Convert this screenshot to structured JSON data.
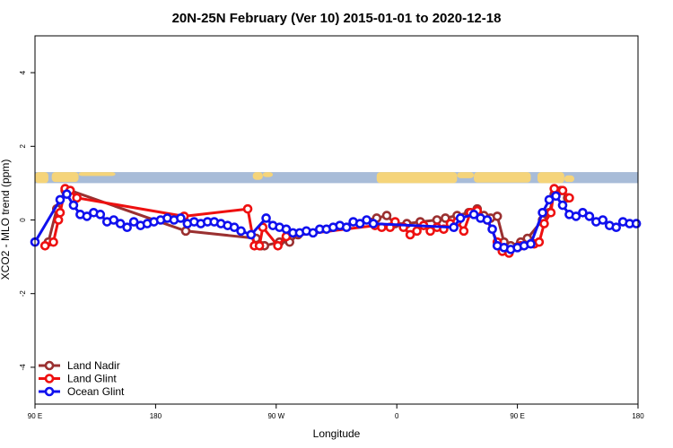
{
  "chart_data": {
    "type": "line",
    "title": "20N-25N February (Ver 10)   2015-01-01 to 2020-12-18",
    "xlabel": "Longitude",
    "ylabel": "XCO2 - MLO trend (ppm)",
    "xlim": [
      0,
      360
    ],
    "ylim": [
      -5,
      5
    ],
    "x_ticks": [
      {
        "value": 0,
        "label": "90 E"
      },
      {
        "value": 72,
        "label": "180"
      },
      {
        "value": 144,
        "label": "90 W"
      },
      {
        "value": 216,
        "label": "0"
      },
      {
        "value": 288,
        "label": "90 E"
      },
      {
        "value": 360,
        "label": "180"
      }
    ],
    "y_ticks": [
      {
        "value": -4,
        "label": "-4"
      },
      {
        "value": -2,
        "label": "-2"
      },
      {
        "value": 0,
        "label": "0"
      },
      {
        "value": 2,
        "label": "2"
      },
      {
        "value": 4,
        "label": "4"
      }
    ],
    "map_strip": {
      "y_range": [
        1.0,
        1.3
      ],
      "ocean_color": "#a8bcd8",
      "land_color": "#f5d47a"
    },
    "legend": {
      "position": "bottom-left"
    },
    "series": [
      {
        "name": "Land Nadir",
        "color": "#9a3030",
        "points": [
          [
            8,
            -0.6
          ],
          [
            13,
            0.3
          ],
          [
            18,
            0.8
          ],
          [
            21,
            0.8
          ],
          [
            90,
            -0.3
          ],
          [
            132,
            -0.5
          ],
          [
            135,
            -0.7
          ],
          [
            137,
            -0.7
          ],
          [
            146,
            -0.6
          ],
          [
            152,
            -0.6
          ],
          [
            157,
            -0.4
          ],
          [
            204,
            0.05
          ],
          [
            210,
            0.12
          ],
          [
            215,
            -0.1
          ],
          [
            222,
            -0.1
          ],
          [
            230,
            -0.05
          ],
          [
            240,
            0.0
          ],
          [
            245,
            0.05
          ],
          [
            252,
            0.12
          ],
          [
            259,
            0.2
          ],
          [
            264,
            0.3
          ],
          [
            268,
            0.12
          ],
          [
            272,
            0.05
          ],
          [
            276,
            0.1
          ],
          [
            280,
            -0.6
          ],
          [
            284,
            -0.7
          ],
          [
            290,
            -0.6
          ],
          [
            294,
            -0.5
          ],
          [
            303,
            0.0
          ],
          [
            307,
            0.2
          ],
          [
            310,
            0.7
          ],
          [
            314,
            0.8
          ],
          [
            318,
            0.6
          ]
        ]
      },
      {
        "name": "Land Glint",
        "color": "#ee1010",
        "points": [
          [
            6,
            -0.7
          ],
          [
            11,
            -0.6
          ],
          [
            14,
            0.0
          ],
          [
            15,
            0.2
          ],
          [
            18,
            0.85
          ],
          [
            21,
            0.8
          ],
          [
            25,
            0.6
          ],
          [
            89,
            0.1
          ],
          [
            127,
            0.3
          ],
          [
            131,
            -0.7
          ],
          [
            134,
            -0.7
          ],
          [
            136,
            -0.2
          ],
          [
            145,
            -0.7
          ],
          [
            150,
            -0.45
          ],
          [
            203,
            -0.15
          ],
          [
            207,
            -0.2
          ],
          [
            212,
            -0.2
          ],
          [
            215,
            -0.05
          ],
          [
            220,
            -0.2
          ],
          [
            224,
            -0.4
          ],
          [
            228,
            -0.3
          ],
          [
            232,
            -0.15
          ],
          [
            236,
            -0.3
          ],
          [
            240,
            -0.2
          ],
          [
            244,
            -0.25
          ],
          [
            248,
            -0.1
          ],
          [
            252,
            -0.05
          ],
          [
            256,
            -0.3
          ],
          [
            260,
            0.2
          ],
          [
            264,
            0.25
          ],
          [
            270,
            0.0
          ],
          [
            276,
            -0.6
          ],
          [
            279,
            -0.85
          ],
          [
            283,
            -0.9
          ],
          [
            290,
            -0.7
          ],
          [
            298,
            -0.65
          ],
          [
            301,
            -0.6
          ],
          [
            304,
            -0.1
          ],
          [
            308,
            0.2
          ],
          [
            310,
            0.85
          ],
          [
            315,
            0.8
          ],
          [
            319,
            0.6
          ]
        ]
      },
      {
        "name": "Ocean Glint",
        "color": "#1010ee",
        "points": [
          [
            0,
            -0.6
          ],
          [
            15,
            0.55
          ],
          [
            19,
            0.7
          ],
          [
            23,
            0.4
          ],
          [
            27,
            0.15
          ],
          [
            31,
            0.1
          ],
          [
            35,
            0.2
          ],
          [
            39,
            0.15
          ],
          [
            43,
            -0.05
          ],
          [
            47,
            0.0
          ],
          [
            51,
            -0.1
          ],
          [
            55,
            -0.2
          ],
          [
            59,
            -0.05
          ],
          [
            63,
            -0.15
          ],
          [
            67,
            -0.1
          ],
          [
            71,
            -0.05
          ],
          [
            75,
            0.0
          ],
          [
            79,
            0.05
          ],
          [
            83,
            0.0
          ],
          [
            87,
            0.05
          ],
          [
            91,
            -0.1
          ],
          [
            95,
            -0.05
          ],
          [
            99,
            -0.1
          ],
          [
            103,
            -0.05
          ],
          [
            107,
            -0.05
          ],
          [
            111,
            -0.1
          ],
          [
            115,
            -0.15
          ],
          [
            119,
            -0.2
          ],
          [
            123,
            -0.3
          ],
          [
            129,
            -0.4
          ],
          [
            138,
            0.05
          ],
          [
            142,
            -0.15
          ],
          [
            146,
            -0.2
          ],
          [
            150,
            -0.25
          ],
          [
            154,
            -0.35
          ],
          [
            158,
            -0.35
          ],
          [
            162,
            -0.3
          ],
          [
            166,
            -0.35
          ],
          [
            170,
            -0.25
          ],
          [
            174,
            -0.25
          ],
          [
            178,
            -0.2
          ],
          [
            182,
            -0.15
          ],
          [
            186,
            -0.2
          ],
          [
            190,
            -0.05
          ],
          [
            194,
            -0.1
          ],
          [
            198,
            0.0
          ],
          [
            202,
            -0.1
          ],
          [
            250,
            -0.2
          ],
          [
            254,
            0.05
          ],
          [
            262,
            0.15
          ],
          [
            266,
            0.05
          ],
          [
            270,
            0.0
          ],
          [
            273,
            -0.25
          ],
          [
            276,
            -0.7
          ],
          [
            280,
            -0.75
          ],
          [
            284,
            -0.8
          ],
          [
            288,
            -0.75
          ],
          [
            292,
            -0.7
          ],
          [
            296,
            -0.65
          ],
          [
            303,
            0.2
          ],
          [
            307,
            0.55
          ],
          [
            311,
            0.65
          ],
          [
            315,
            0.4
          ],
          [
            319,
            0.15
          ],
          [
            323,
            0.1
          ],
          [
            327,
            0.2
          ],
          [
            331,
            0.1
          ],
          [
            335,
            -0.05
          ],
          [
            339,
            0.0
          ],
          [
            343,
            -0.15
          ],
          [
            347,
            -0.2
          ],
          [
            351,
            -0.05
          ],
          [
            355,
            -0.1
          ],
          [
            359,
            -0.1
          ]
        ]
      }
    ]
  }
}
